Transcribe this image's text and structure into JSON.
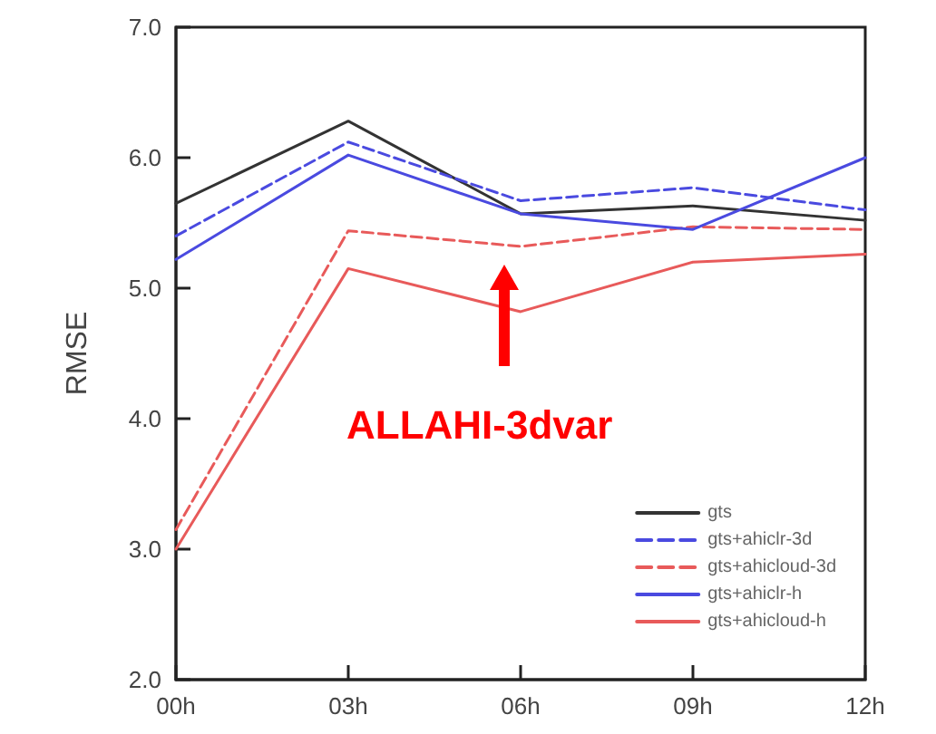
{
  "chart_data": {
    "type": "line",
    "ylabel": "RMSE",
    "categories": [
      "00h",
      "03h",
      "06h",
      "09h",
      "12h"
    ],
    "ylim": [
      2,
      7
    ],
    "yticks": [
      {
        "value": 2,
        "label": "2.0"
      },
      {
        "value": 3,
        "label": "3.0"
      },
      {
        "value": 4,
        "label": "4.0"
      },
      {
        "value": 5,
        "label": "5.0"
      },
      {
        "value": 6,
        "label": "6.0"
      },
      {
        "value": 7,
        "label": "7.0"
      }
    ],
    "grid": false,
    "legend": "bottom right",
    "marker": "none",
    "series": [
      {
        "name": "gts",
        "color": "#333333",
        "line_style": "solid",
        "values": [
          5.65,
          6.28,
          5.57,
          5.63,
          5.52
        ]
      },
      {
        "name": "gts+ahiclr-3d",
        "color": "#4a4ae0",
        "line_style": "dashed",
        "values": [
          5.4,
          6.12,
          5.67,
          5.77,
          5.6
        ]
      },
      {
        "name": "gts+ahicloud-3d",
        "color": "#e85a5a",
        "line_style": "dashed",
        "values": [
          3.15,
          5.44,
          5.32,
          5.47,
          5.45
        ]
      },
      {
        "name": "gts+ahiclr-h",
        "color": "#4a4ae0",
        "line_style": "solid",
        "values": [
          5.22,
          6.02,
          5.57,
          5.45,
          6.0
        ]
      },
      {
        "name": "gts+ahicloud-h",
        "color": "#e85a5a",
        "line_style": "solid",
        "values": [
          3.0,
          5.15,
          4.82,
          5.2,
          5.26
        ]
      }
    ],
    "annotations": [
      "ALLAHI-3dvar"
    ]
  }
}
